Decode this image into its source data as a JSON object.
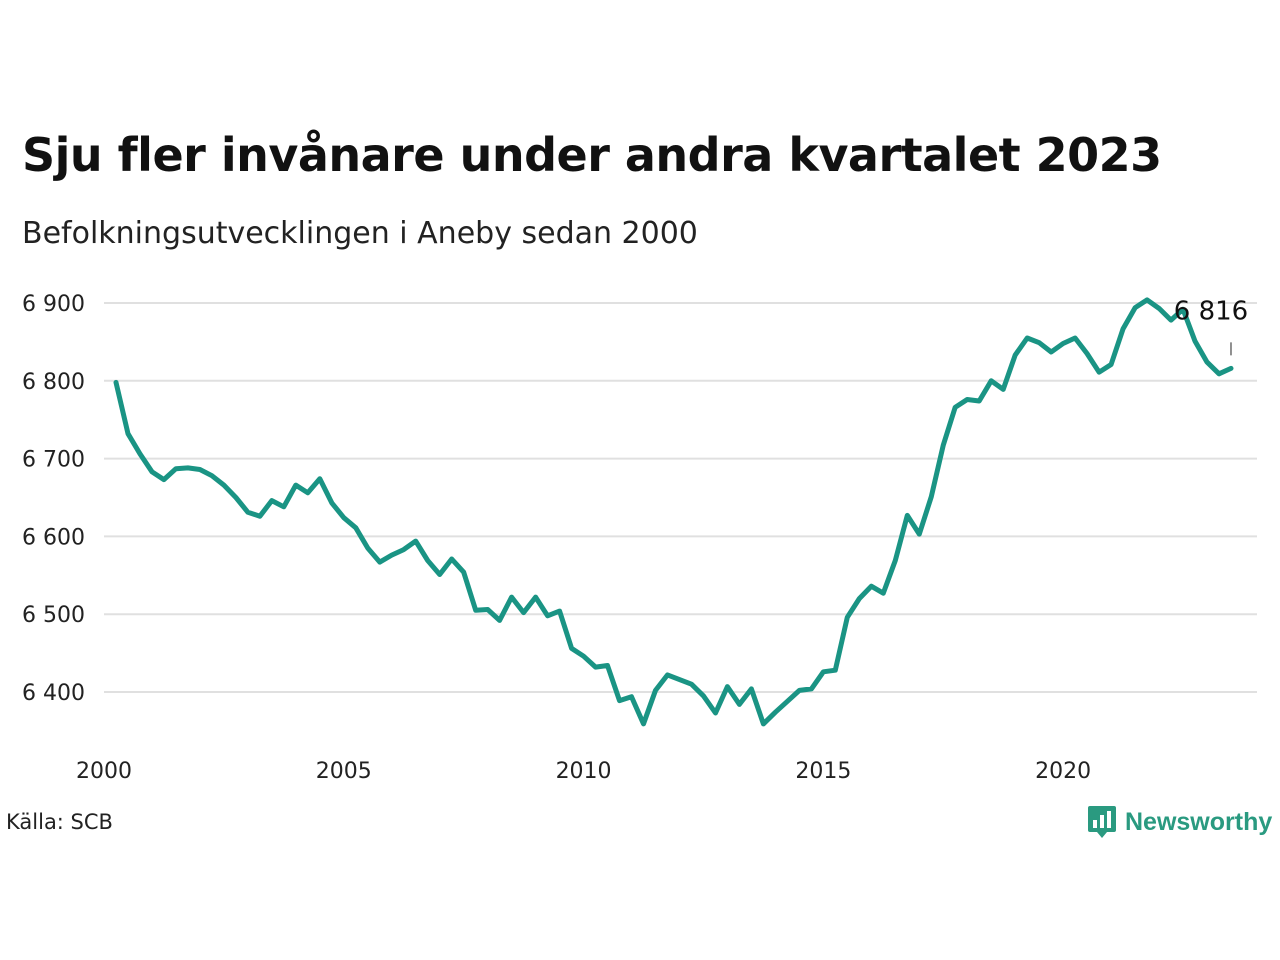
{
  "title": "Sju fler invånare under andra kvartalet 2023",
  "subtitle": "Befolkningsutvecklingen i Aneby sedan 2000",
  "source": "Källa: SCB",
  "brand": "Newsworthy",
  "colors": {
    "line": "#1a9484",
    "grid": "#e0e0e0",
    "brand": "#2a9a80"
  },
  "chart_data": {
    "type": "line",
    "title": "Sju fler invånare under andra kvartalet 2023",
    "subtitle": "Befolkningsutvecklingen i Aneby sedan 2000",
    "xlabel": "",
    "ylabel": "",
    "xlim": [
      2000,
      2024
    ],
    "ylim": [
      6350,
      6920
    ],
    "yticks": [
      6400,
      6500,
      6600,
      6700,
      6800,
      6900
    ],
    "ytick_labels": [
      "6 400",
      "6 500",
      "6 600",
      "6 700",
      "6 800",
      "6 900"
    ],
    "xticks": [
      2000,
      2005,
      2010,
      2015,
      2020
    ],
    "xtick_labels": [
      "2000",
      "2005",
      "2010",
      "2015",
      "2020"
    ],
    "grid": true,
    "last_value_label": "6 816",
    "series": [
      {
        "values": [
          [
            2000.25,
            6798
          ],
          [
            2000.5,
            6732
          ],
          [
            2000.75,
            6706
          ],
          [
            2001.0,
            6683
          ],
          [
            2001.25,
            6673
          ],
          [
            2001.5,
            6687
          ],
          [
            2001.75,
            6688
          ],
          [
            2002.0,
            6686
          ],
          [
            2002.25,
            6678
          ],
          [
            2002.5,
            6666
          ],
          [
            2002.75,
            6650
          ],
          [
            2003.0,
            6631
          ],
          [
            2003.25,
            6626
          ],
          [
            2003.5,
            6646
          ],
          [
            2003.75,
            6638
          ],
          [
            2004.0,
            6666
          ],
          [
            2004.25,
            6656
          ],
          [
            2004.5,
            6674
          ],
          [
            2004.75,
            6643
          ],
          [
            2005.0,
            6624
          ],
          [
            2005.25,
            6611
          ],
          [
            2005.5,
            6585
          ],
          [
            2005.75,
            6567
          ],
          [
            2006.0,
            6576
          ],
          [
            2006.25,
            6583
          ],
          [
            2006.5,
            6594
          ],
          [
            2006.75,
            6569
          ],
          [
            2007.0,
            6551
          ],
          [
            2007.25,
            6571
          ],
          [
            2007.5,
            6554
          ],
          [
            2007.75,
            6505
          ],
          [
            2008.0,
            6506
          ],
          [
            2008.25,
            6492
          ],
          [
            2008.5,
            6522
          ],
          [
            2008.75,
            6502
          ],
          [
            2009.0,
            6522
          ],
          [
            2009.25,
            6498
          ],
          [
            2009.5,
            6504
          ],
          [
            2009.75,
            6456
          ],
          [
            2010.0,
            6446
          ],
          [
            2010.25,
            6432
          ],
          [
            2010.5,
            6434
          ],
          [
            2010.75,
            6389
          ],
          [
            2011.0,
            6394
          ],
          [
            2011.25,
            6359
          ],
          [
            2011.5,
            6402
          ],
          [
            2011.75,
            6422
          ],
          [
            2012.0,
            6416
          ],
          [
            2012.25,
            6410
          ],
          [
            2012.5,
            6395
          ],
          [
            2012.75,
            6373
          ],
          [
            2013.0,
            6407
          ],
          [
            2013.25,
            6384
          ],
          [
            2013.5,
            6404
          ],
          [
            2013.75,
            6359
          ],
          [
            2014.0,
            6374
          ],
          [
            2014.25,
            6388
          ],
          [
            2014.5,
            6402
          ],
          [
            2014.75,
            6404
          ],
          [
            2015.0,
            6426
          ],
          [
            2015.25,
            6428
          ],
          [
            2015.5,
            6496
          ],
          [
            2015.75,
            6520
          ],
          [
            2016.0,
            6536
          ],
          [
            2016.25,
            6527
          ],
          [
            2016.5,
            6569
          ],
          [
            2016.75,
            6627
          ],
          [
            2017.0,
            6603
          ],
          [
            2017.25,
            6651
          ],
          [
            2017.5,
            6717
          ],
          [
            2017.75,
            6766
          ],
          [
            2018.0,
            6776
          ],
          [
            2018.25,
            6774
          ],
          [
            2018.5,
            6800
          ],
          [
            2018.75,
            6789
          ],
          [
            2019.0,
            6833
          ],
          [
            2019.25,
            6855
          ],
          [
            2019.5,
            6849
          ],
          [
            2019.75,
            6837
          ],
          [
            2020.0,
            6848
          ],
          [
            2020.25,
            6855
          ],
          [
            2020.5,
            6835
          ],
          [
            2020.75,
            6811
          ],
          [
            2021.0,
            6821
          ],
          [
            2021.25,
            6867
          ],
          [
            2021.5,
            6894
          ],
          [
            2021.75,
            6904
          ],
          [
            2022.0,
            6893
          ],
          [
            2022.25,
            6878
          ],
          [
            2022.5,
            6892
          ],
          [
            2022.75,
            6851
          ],
          [
            2023.0,
            6824
          ],
          [
            2023.25,
            6809
          ],
          [
            2023.5,
            6816
          ]
        ]
      }
    ]
  }
}
